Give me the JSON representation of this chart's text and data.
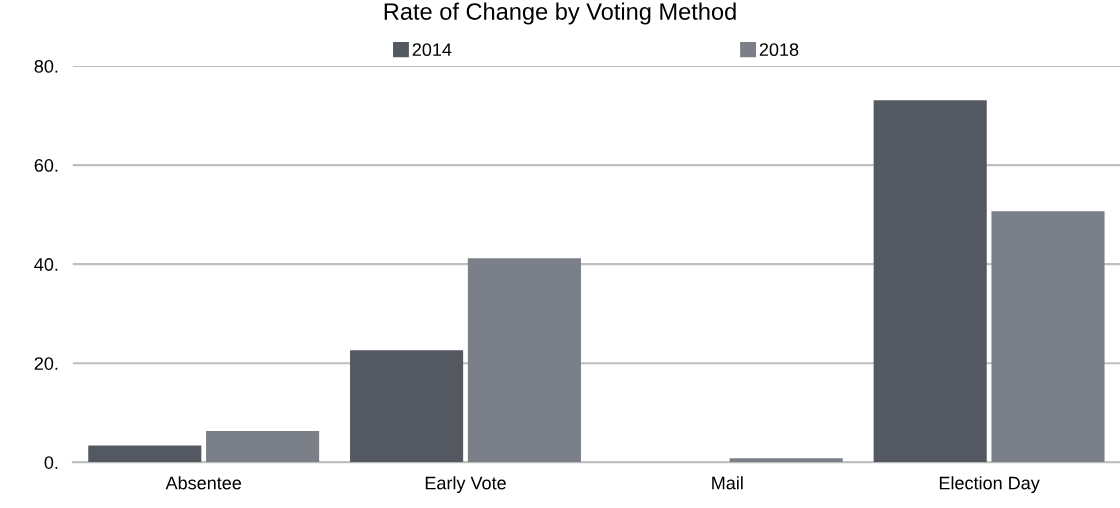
{
  "chart_data": {
    "type": "bar",
    "title": "Rate of Change by Voting Method",
    "categories": [
      "Absentee",
      "Early Vote",
      "Mail",
      "Election Day"
    ],
    "series": [
      {
        "name": "2014",
        "color": "#545860",
        "values": [
          3.4,
          22.6,
          0,
          73.1
        ]
      },
      {
        "name": "2018",
        "color": "#7a7f88",
        "values": [
          6.3,
          41.2,
          0.8,
          50.7
        ]
      }
    ],
    "ylim": [
      0,
      80
    ],
    "yticks": [
      {
        "value": 0,
        "label": "0."
      },
      {
        "value": 20,
        "label": "20."
      },
      {
        "value": 40,
        "label": "40."
      },
      {
        "value": 60,
        "label": "60."
      },
      {
        "value": 80,
        "label": "80."
      }
    ],
    "grid": "y",
    "legend": "top"
  }
}
